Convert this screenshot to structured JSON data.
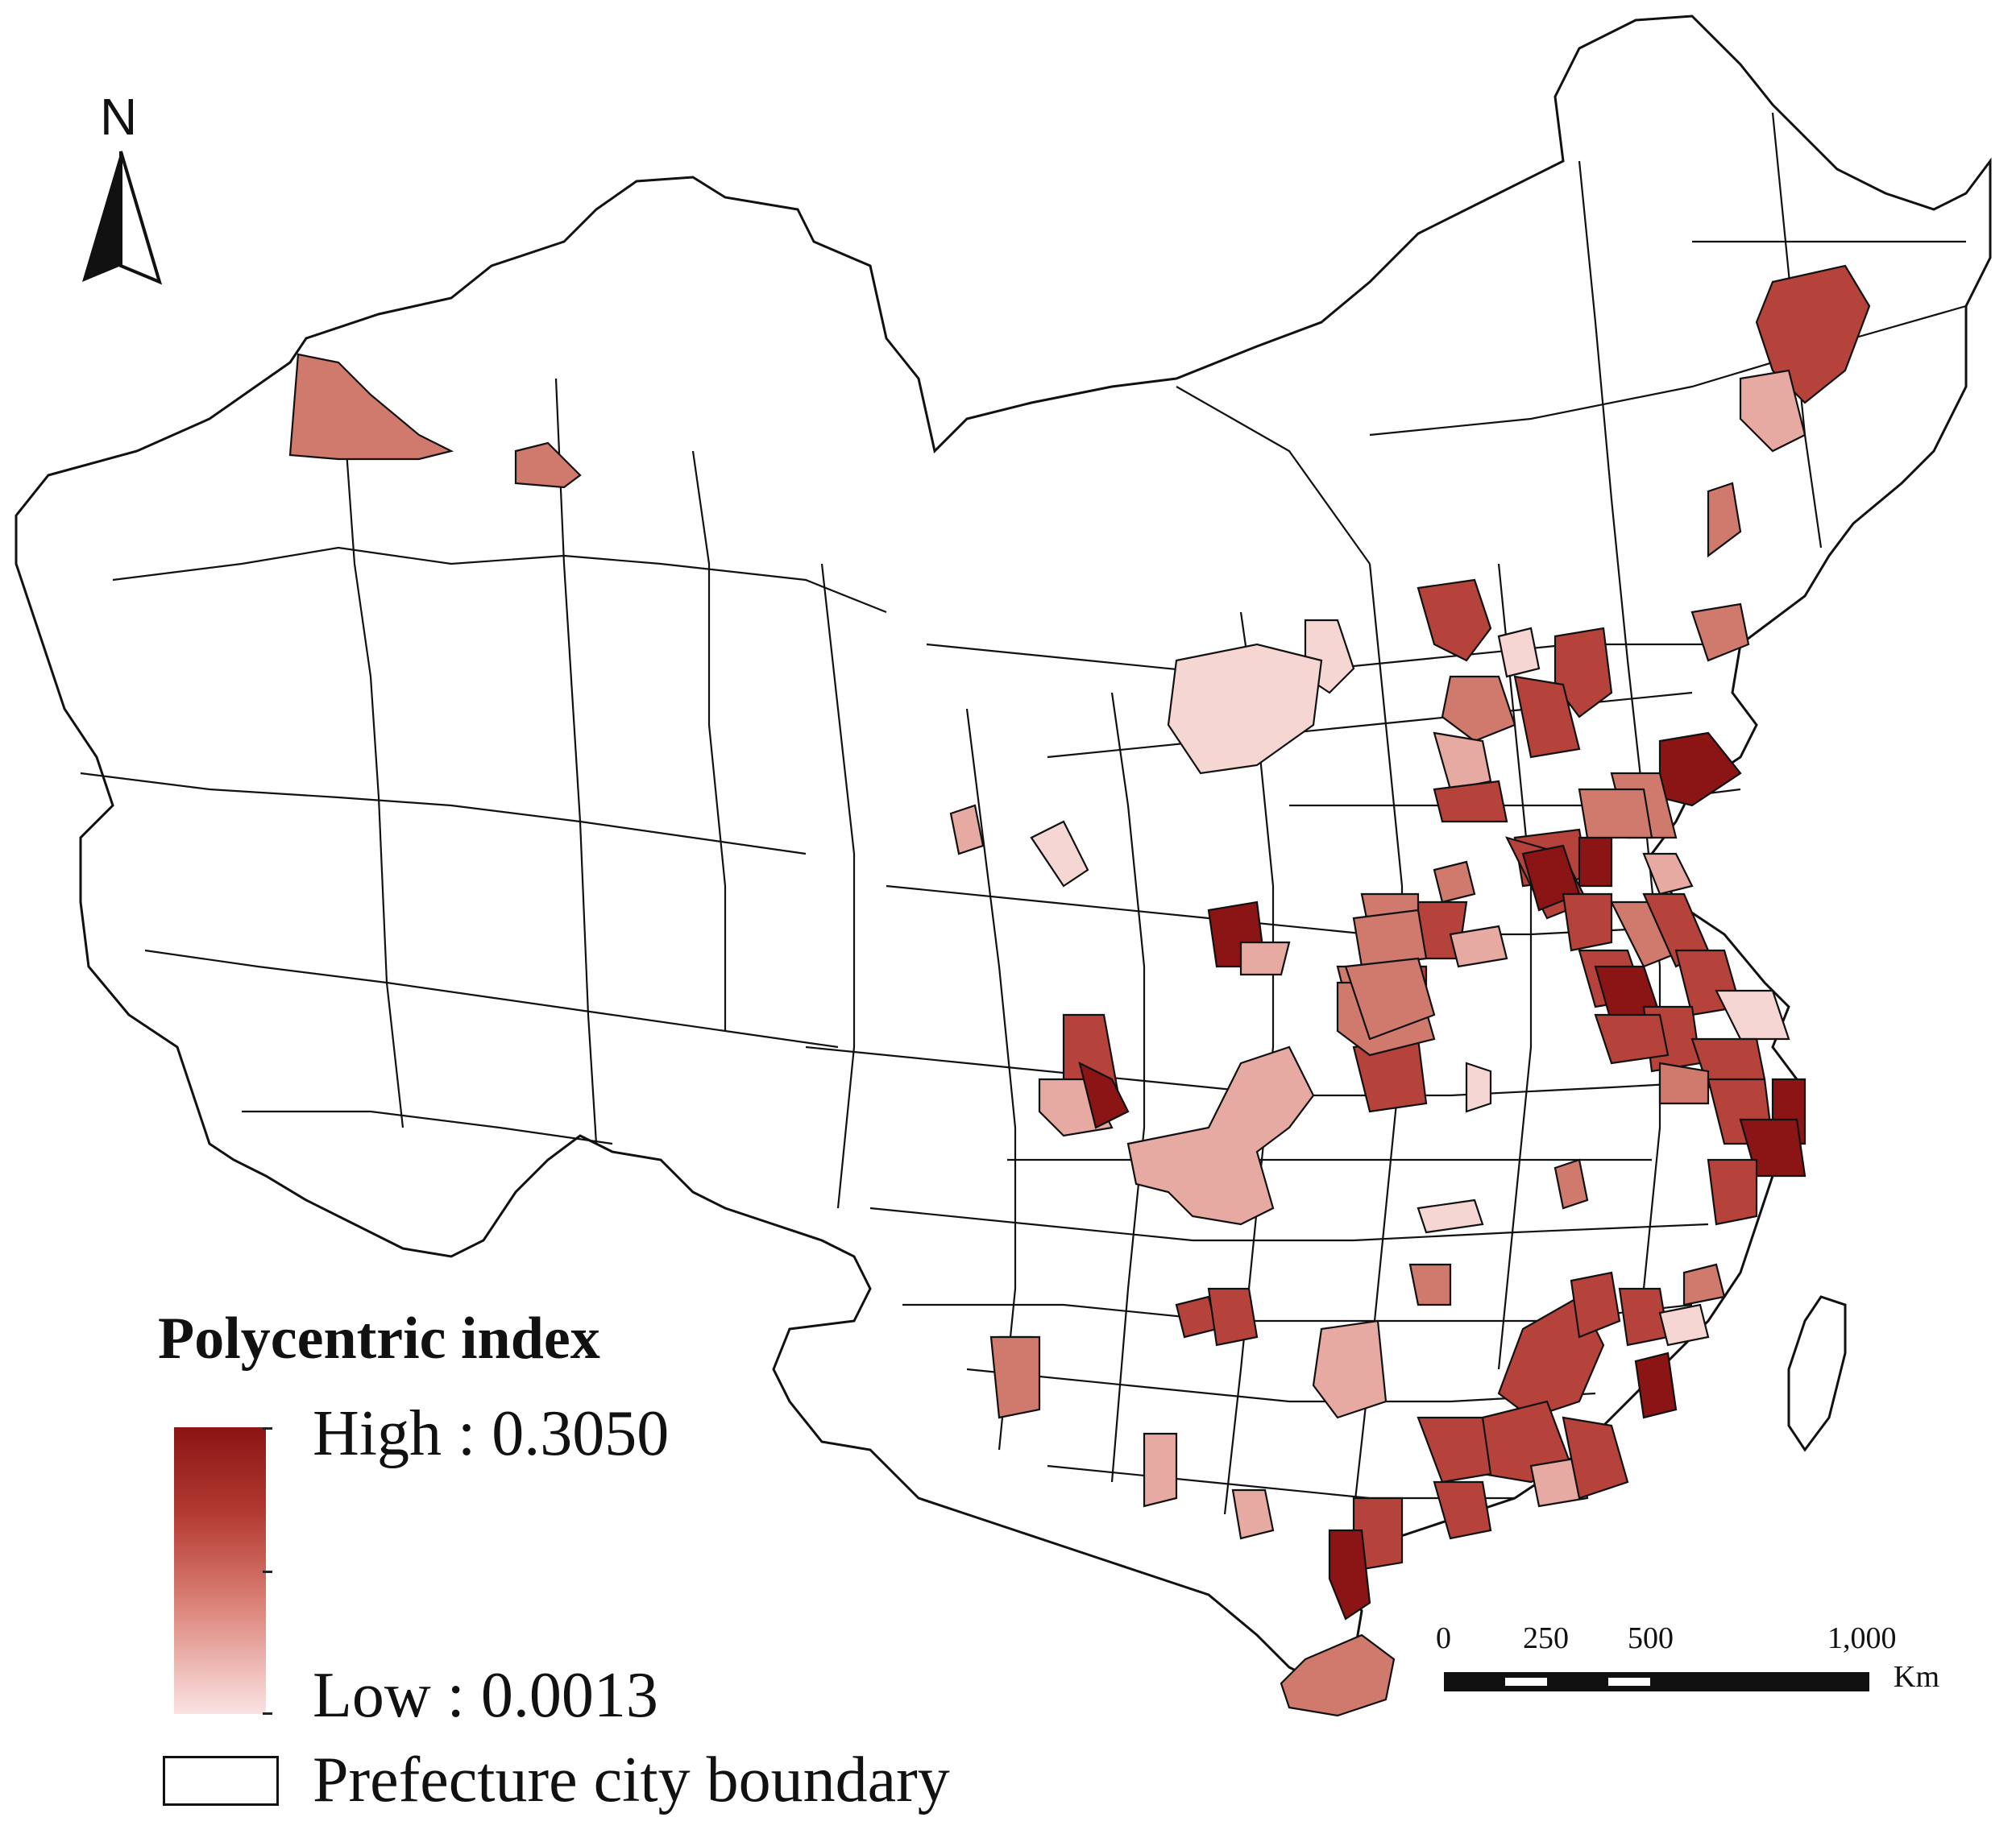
{
  "north_arrow": {
    "label": "N"
  },
  "legend": {
    "title": "Polycentric index",
    "high_label": "High : 0.3050",
    "low_label": "Low : 0.0013",
    "boundary_label": "Prefecture city boundary",
    "gradient_colors": [
      "#8b1414",
      "#b33a32",
      "#d97e72",
      "#fbe3e3"
    ]
  },
  "scale_bar": {
    "ticks": [
      "0",
      "250",
      "500",
      "1,000"
    ],
    "unit": "Km"
  },
  "map": {
    "boundary_color": "#111111",
    "fill_none": "#ffffff",
    "class_colors": {
      "very_high": "#8b1414",
      "high": "#b5433b",
      "medium": "#d07a6e",
      "low": "#e6aaa3",
      "very_low": "#f6d6d3"
    }
  }
}
